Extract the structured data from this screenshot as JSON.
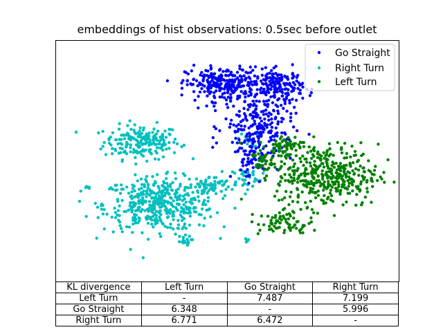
{
  "chart_data": {
    "type": "scatter",
    "title": "embeddings of hist observations: 0.5sec before outlet",
    "xlabel": "",
    "ylabel": "",
    "axes_ticks": "none",
    "grid": false,
    "legend_position": "upper right",
    "series": [
      {
        "name": "Go Straight",
        "color": "#0000ff",
        "clusters": [
          {
            "cx": 0.49,
            "cy": 0.82,
            "sx": 0.055,
            "sy": 0.035,
            "n": 260
          },
          {
            "cx": 0.65,
            "cy": 0.81,
            "sx": 0.035,
            "sy": 0.035,
            "n": 170
          },
          {
            "cx": 0.59,
            "cy": 0.64,
            "sx": 0.05,
            "sy": 0.07,
            "n": 230
          },
          {
            "cx": 0.56,
            "cy": 0.49,
            "sx": 0.02,
            "sy": 0.035,
            "n": 40
          }
        ]
      },
      {
        "name": "Right Turn",
        "color": "#00bfbf",
        "clusters": [
          {
            "cx": 0.25,
            "cy": 0.58,
            "sx": 0.055,
            "sy": 0.035,
            "n": 200
          },
          {
            "cx": 0.3,
            "cy": 0.32,
            "sx": 0.08,
            "sy": 0.055,
            "n": 450
          },
          {
            "cx": 0.45,
            "cy": 0.4,
            "sx": 0.03,
            "sy": 0.018,
            "n": 60
          },
          {
            "cx": 0.55,
            "cy": 0.43,
            "sx": 0.025,
            "sy": 0.025,
            "n": 40
          },
          {
            "cx": 0.37,
            "cy": 0.17,
            "sx": 0.012,
            "sy": 0.01,
            "n": 20
          },
          {
            "cx": 0.09,
            "cy": 0.39,
            "sx": 0.004,
            "sy": 0.004,
            "n": 6
          },
          {
            "cx": 0.56,
            "cy": 0.59,
            "sx": 0.015,
            "sy": 0.015,
            "n": 15
          },
          {
            "cx": 0.56,
            "cy": 0.17,
            "sx": 0.004,
            "sy": 0.004,
            "n": 5
          }
        ]
      },
      {
        "name": "Left Turn",
        "color": "#008000",
        "clusters": [
          {
            "cx": 0.79,
            "cy": 0.44,
            "sx": 0.075,
            "sy": 0.065,
            "n": 420
          },
          {
            "cx": 0.66,
            "cy": 0.56,
            "sx": 0.03,
            "sy": 0.025,
            "n": 70
          },
          {
            "cx": 0.67,
            "cy": 0.24,
            "sx": 0.04,
            "sy": 0.025,
            "n": 70
          },
          {
            "cx": 0.6,
            "cy": 0.5,
            "sx": 0.015,
            "sy": 0.02,
            "n": 30
          }
        ]
      }
    ]
  },
  "table": {
    "header": [
      "KL divergence",
      "Left Turn",
      "Go Straight",
      "Right Turn"
    ],
    "rows": [
      [
        "Left Turn",
        "-",
        "7.487",
        "7.199"
      ],
      [
        "Go Straight",
        "6.348",
        "-",
        "5.996"
      ],
      [
        "Right Turn",
        "6.771",
        "6.472",
        "-"
      ]
    ]
  }
}
